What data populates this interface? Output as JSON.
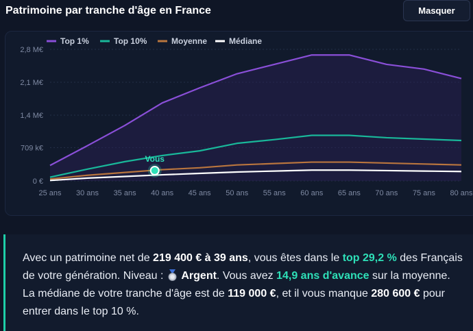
{
  "header": {
    "title": "Patrimoine par tranche d'âge en France",
    "hide_button": "Masquer"
  },
  "chart_data": {
    "type": "line",
    "categories": [
      "25 ans",
      "30 ans",
      "35 ans",
      "40 ans",
      "45 ans",
      "50 ans",
      "55 ans",
      "60 ans",
      "65 ans",
      "70 ans",
      "75 ans",
      "80 ans"
    ],
    "ticks": {
      "values": [
        0,
        709000,
        1400000,
        2100000,
        2800000
      ],
      "labels": [
        "0 €",
        "709 k€",
        "1,4 M€",
        "2,1 M€",
        "2,8 M€"
      ]
    },
    "ylim": [
      0,
      2900000
    ],
    "legend_position": "top-left",
    "series": [
      {
        "name": "Top 1%",
        "color": "#8a4fd8",
        "values": [
          330000,
          750000,
          1180000,
          1660000,
          1980000,
          2280000,
          2480000,
          2680000,
          2680000,
          2480000,
          2380000,
          2180000
        ]
      },
      {
        "name": "Top 10%",
        "color": "#19b89a",
        "values": [
          80000,
          250000,
          410000,
          540000,
          640000,
          800000,
          880000,
          970000,
          970000,
          920000,
          890000,
          860000
        ]
      },
      {
        "name": "Moyenne",
        "color": "#b9753e",
        "values": [
          40000,
          120000,
          180000,
          240000,
          280000,
          340000,
          370000,
          400000,
          400000,
          380000,
          360000,
          340000
        ]
      },
      {
        "name": "Médiane",
        "color": "#ffffff",
        "values": [
          10000,
          60000,
          95000,
          130000,
          160000,
          190000,
          210000,
          230000,
          230000,
          220000,
          210000,
          200000
        ]
      }
    ],
    "marker": {
      "label": "Vous",
      "x_age": 39,
      "value": 219400,
      "color": "#2ee0b8"
    }
  },
  "info": {
    "p1": "Avec un patrimoine net de ",
    "net_worth": "219 400 € à 39 ans",
    "p2": ", vous êtes dans le ",
    "top_pct": "top 29,2 %",
    "p3": " des Français de votre génération. Niveau : ",
    "level": "Argent",
    "p4": ". Vous avez ",
    "advance": "14,9 ans d'avance",
    "p5": " sur la moyenne. La médiane de votre tranche d'âge est de ",
    "median": "119 000 €",
    "p6": ", et il vous manque ",
    "missing": "280 600 €",
    "p7": " pour entrer dans le top 10 %."
  }
}
